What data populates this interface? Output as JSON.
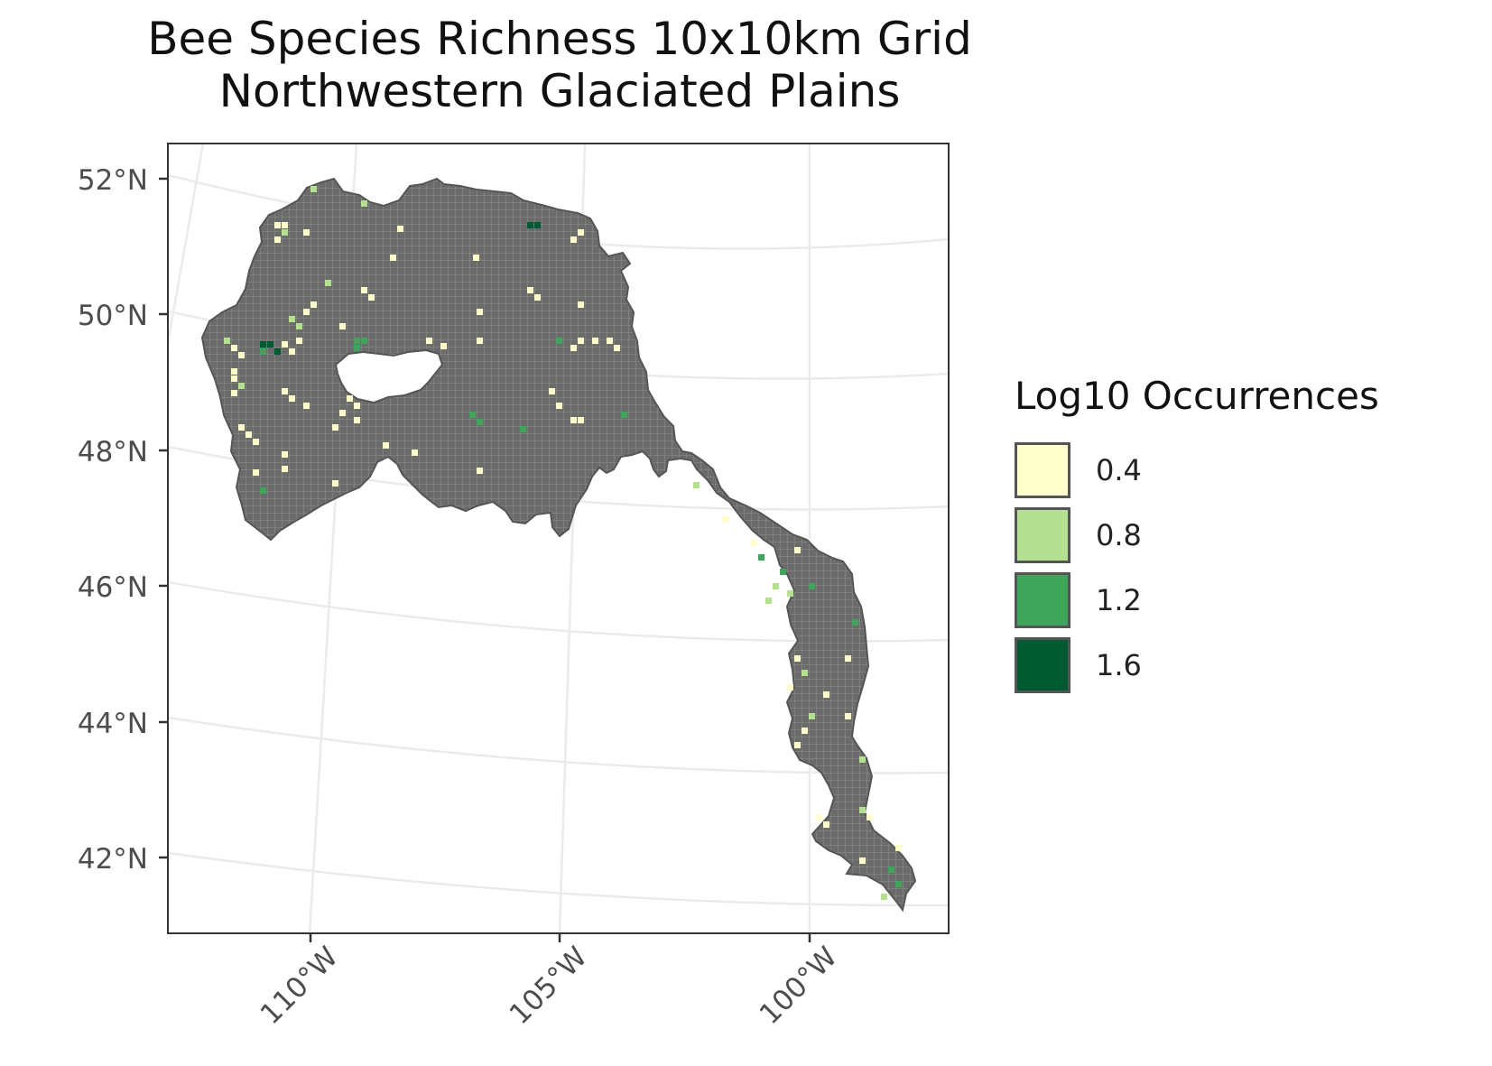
{
  "title_lines": [
    "Bee Species Richness 10x10km Grid",
    "Northwestern Glaciated Plains"
  ],
  "legend": {
    "title": "Log10 Occurrences",
    "items": [
      {
        "label": "0.4",
        "color": "#ffffcc"
      },
      {
        "label": "0.8",
        "color": "#b5e092"
      },
      {
        "label": "1.2",
        "color": "#3fa55a"
      },
      {
        "label": "1.6",
        "color": "#005a32"
      }
    ]
  },
  "axes": {
    "lat_labels": [
      "52°N",
      "50°N",
      "48°N",
      "46°N",
      "44°N",
      "42°N"
    ],
    "lon_labels": [
      "110°W",
      "105°W",
      "100°W"
    ]
  },
  "map": {
    "region_fill": "#6b6b6b",
    "grid_line": "#8a8a8a",
    "graticule_color": "#ebebeb"
  }
}
